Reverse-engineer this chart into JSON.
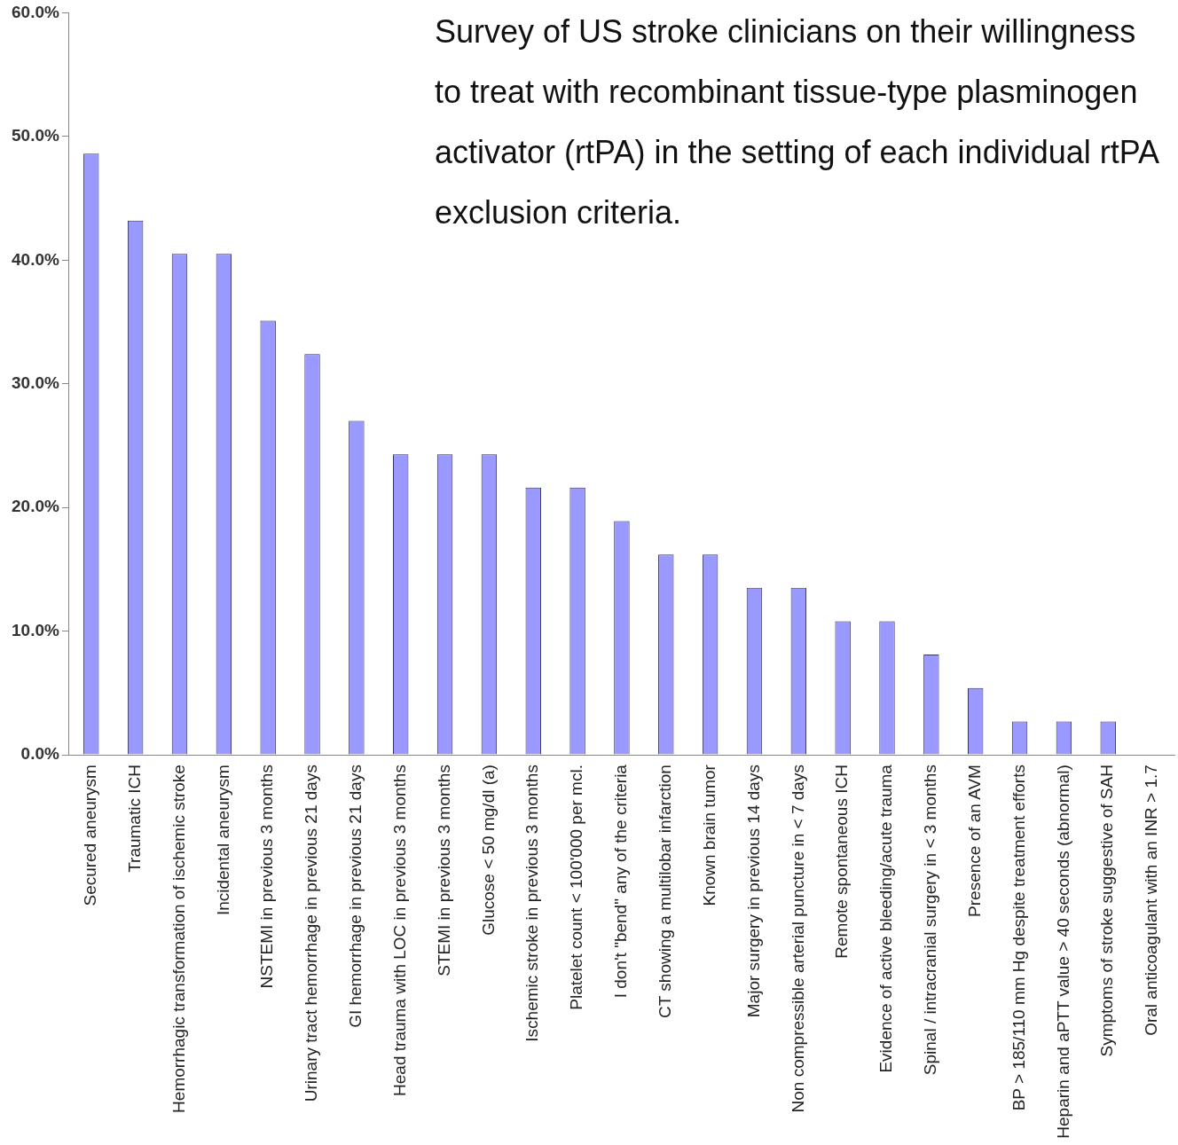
{
  "chart_data": {
    "type": "bar",
    "title": "Survey of US stroke clinicians on their willingness to treat with recombinant tissue-type plasminogen activator (rtPA) in the setting of each individual rtPA exclusion criteria.",
    "categories": [
      "Secured aneurysm",
      "Traumatic ICH",
      "Hemorrhagic transformation of ischemic stroke",
      "Incidental aneurysm",
      "NSTEMI in previous 3 months",
      "Urinary tract hemorrhage in previous 21 days",
      "GI hemorrhage in previous 21 days",
      "Head trauma with LOC in previous 3 months",
      "STEMI in previous 3 months",
      "Glucose < 50 mg/dl (a)",
      "Ischemic stroke in previous 3 months",
      "Platelet count < 100'000 per mcl.",
      "I don't \"bend\" any of the criteria",
      "CT showing a multilobar infarction",
      "Known brain tumor",
      "Major surgery in previous 14 days",
      "Non compressible arterial puncture in < 7 days",
      "Remote spontaneous ICH",
      "Evidence of active bleeding/acute trauma",
      "Spinal / intracranial surgery in < 3 months",
      "Presence of an AVM",
      "BP > 185/110 mm Hg despite treatment efforts",
      "Heparin and aPTT value > 40 seconds (abnormal)",
      "Symptoms of stroke suggestive of SAH",
      "Oral anticoagulant with an INR > 1.7"
    ],
    "values": [
      48.6,
      43.2,
      40.5,
      40.5,
      35.1,
      32.4,
      27.0,
      24.3,
      24.3,
      24.3,
      21.6,
      21.6,
      18.9,
      16.2,
      16.2,
      13.5,
      13.5,
      10.8,
      10.8,
      8.1,
      5.4,
      2.7,
      2.7,
      2.7,
      0
    ],
    "color": "#9999ff",
    "ylim": [
      0,
      60
    ],
    "yticks": [
      {
        "value": 0,
        "label": "0.0%"
      },
      {
        "value": 10,
        "label": "10.0%"
      },
      {
        "value": 20,
        "label": "20.0%"
      },
      {
        "value": 30,
        "label": "30.0%"
      },
      {
        "value": 40,
        "label": "40.0%"
      },
      {
        "value": 50,
        "label": "50.0%"
      },
      {
        "value": 60,
        "label": "60.0%"
      }
    ],
    "grid": false,
    "legend": false
  }
}
